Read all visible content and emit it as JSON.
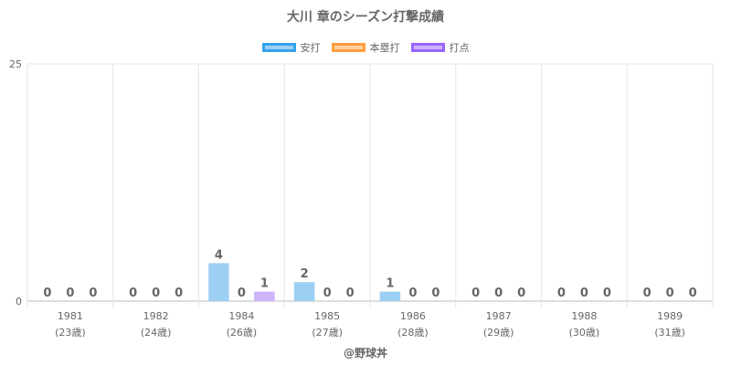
{
  "chart_data": {
    "type": "bar",
    "title": "大川 章のシーズン打撃成績",
    "categories": [
      "1981",
      "1982",
      "1984",
      "1985",
      "1986",
      "1987",
      "1988",
      "1989"
    ],
    "category_sublabels": [
      "(23歳)",
      "(24歳)",
      "(26歳)",
      "(27歳)",
      "(28歳)",
      "(29歳)",
      "(30歳)",
      "(31歳)"
    ],
    "series": [
      {
        "name": "安打",
        "values": [
          0,
          0,
          4,
          2,
          1,
          0,
          0,
          0
        ],
        "color": "#9dcff5",
        "border": "#36a2eb"
      },
      {
        "name": "本塁打",
        "values": [
          0,
          0,
          0,
          0,
          0,
          0,
          0,
          0
        ],
        "color": "#ffcf9f",
        "border": "#ff9f40"
      },
      {
        "name": "打点",
        "values": [
          0,
          0,
          1,
          0,
          0,
          0,
          0,
          0
        ],
        "color": "#cdb4fb",
        "border": "#9966ff"
      }
    ],
    "ylim": [
      0,
      25
    ],
    "yticks": [
      0,
      25
    ],
    "grid": true,
    "legend": "top-center",
    "data_labels": true
  },
  "footer": {
    "credit": "@野球丼"
  }
}
